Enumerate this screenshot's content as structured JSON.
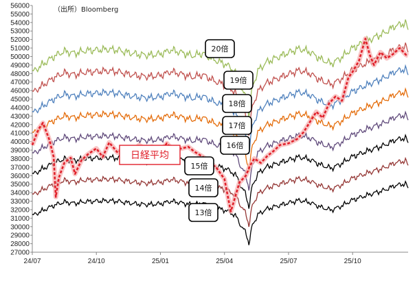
{
  "source_label": "（出所）Bloomberg",
  "chart_data": {
    "type": "line",
    "ylim": [
      27000,
      56000
    ],
    "y_ticks": [
      27000,
      28000,
      29000,
      30000,
      31000,
      32000,
      33000,
      34000,
      35000,
      36000,
      37000,
      38000,
      39000,
      40000,
      41000,
      42000,
      43000,
      44000,
      45000,
      46000,
      47000,
      48000,
      49000,
      50000,
      51000,
      52000,
      53000,
      54000,
      55000,
      56000
    ],
    "x_ticks": [
      {
        "label": "24/07",
        "t": 0
      },
      {
        "label": "24/10",
        "t": 3
      },
      {
        "label": "25/01",
        "t": 6
      },
      {
        "label": "25/04",
        "t": 9
      },
      {
        "label": "25/07",
        "t": 12
      },
      {
        "label": "25/10",
        "t": 15
      }
    ],
    "x_range": [
      0,
      17.6
    ],
    "colors": {
      "20": "#9bbb59",
      "19": "#c0504d",
      "18": "#4f81bd",
      "17": "#e46c0a",
      "16": "#604a7b",
      "15": "#000000",
      "14": "#943634",
      "13": "#000000",
      "nikkei": "#e0202a"
    },
    "band_anchors": [
      [
        0.0,
        31300
      ],
      [
        0.5,
        31900
      ],
      [
        1.0,
        32500
      ],
      [
        1.5,
        32900
      ],
      [
        2.0,
        32750
      ],
      [
        2.5,
        32950
      ],
      [
        3.0,
        33000
      ],
      [
        3.5,
        33050
      ],
      [
        4.0,
        33000
      ],
      [
        4.5,
        32800
      ],
      [
        5.0,
        32650
      ],
      [
        5.5,
        32600
      ],
      [
        6.0,
        32700
      ],
      [
        6.5,
        33000
      ],
      [
        7.0,
        32800
      ],
      [
        7.5,
        32550
      ],
      [
        8.0,
        32750
      ],
      [
        8.5,
        32250
      ],
      [
        9.0,
        31950
      ],
      [
        9.3,
        31650
      ],
      [
        9.6,
        31050
      ],
      [
        9.8,
        29900
      ],
      [
        10.0,
        29400
      ],
      [
        10.15,
        27900
      ],
      [
        10.3,
        30200
      ],
      [
        10.6,
        31500
      ],
      [
        11.0,
        32100
      ],
      [
        11.5,
        32450
      ],
      [
        12.0,
        32800
      ],
      [
        12.5,
        33100
      ],
      [
        13.0,
        32850
      ],
      [
        13.5,
        32300
      ],
      [
        14.0,
        31950
      ],
      [
        14.5,
        32450
      ],
      [
        15.0,
        33150
      ],
      [
        15.5,
        33550
      ],
      [
        16.0,
        33950
      ],
      [
        16.5,
        34300
      ],
      [
        17.0,
        34850
      ],
      [
        17.5,
        35050
      ],
      [
        17.6,
        34450
      ]
    ],
    "band_multipliers": {
      "13": 1.0,
      "14": 1.0769,
      "15": 1.1538,
      "16": 1.2308,
      "17": 1.3077,
      "18": 1.3846,
      "19": 1.4615,
      "20": 1.5385
    },
    "band_labels": [
      "20倍",
      "19倍",
      "18倍",
      "17倍",
      "16倍",
      "15倍",
      "14倍",
      "13倍"
    ],
    "nikkei_label": "日経平均",
    "series": [
      {
        "name": "日経平均",
        "values": [
          [
            0.0,
            39600
          ],
          [
            0.3,
            41500
          ],
          [
            0.5,
            42200
          ],
          [
            0.8,
            40200
          ],
          [
            1.0,
            38200
          ],
          [
            1.1,
            33500
          ],
          [
            1.25,
            35800
          ],
          [
            1.5,
            37500
          ],
          [
            1.8,
            38100
          ],
          [
            2.0,
            36200
          ],
          [
            2.3,
            37800
          ],
          [
            2.6,
            38500
          ],
          [
            3.0,
            39200
          ],
          [
            3.3,
            38200
          ],
          [
            3.6,
            39900
          ],
          [
            4.0,
            38700
          ],
          [
            4.3,
            39300
          ],
          [
            4.6,
            38400
          ],
          [
            5.0,
            39600
          ],
          [
            5.3,
            39100
          ],
          [
            5.6,
            39400
          ],
          [
            6.0,
            38800
          ],
          [
            6.3,
            39800
          ],
          [
            6.6,
            39000
          ],
          [
            7.0,
            39200
          ],
          [
            7.3,
            39400
          ],
          [
            7.6,
            38800
          ],
          [
            8.0,
            38200
          ],
          [
            8.3,
            37500
          ],
          [
            8.6,
            37000
          ],
          [
            9.0,
            35600
          ],
          [
            9.2,
            33000
          ],
          [
            9.3,
            31800
          ],
          [
            9.5,
            33500
          ],
          [
            9.7,
            35200
          ],
          [
            10.0,
            36000
          ],
          [
            10.2,
            37200
          ],
          [
            10.4,
            38000
          ],
          [
            10.7,
            37500
          ],
          [
            11.0,
            38300
          ],
          [
            11.3,
            38900
          ],
          [
            11.6,
            39600
          ],
          [
            12.0,
            39800
          ],
          [
            12.4,
            40300
          ],
          [
            12.7,
            41100
          ],
          [
            13.0,
            42300
          ],
          [
            13.3,
            43500
          ],
          [
            13.6,
            42800
          ],
          [
            13.9,
            44500
          ],
          [
            14.2,
            45300
          ],
          [
            14.5,
            44800
          ],
          [
            14.8,
            47500
          ],
          [
            15.0,
            48200
          ],
          [
            15.3,
            49500
          ],
          [
            15.6,
            52100
          ],
          [
            15.8,
            50200
          ],
          [
            16.0,
            49000
          ],
          [
            16.3,
            50500
          ],
          [
            16.6,
            49800
          ],
          [
            16.9,
            50300
          ],
          [
            17.2,
            51000
          ],
          [
            17.5,
            50200
          ],
          [
            17.6,
            50100
          ]
        ]
      }
    ]
  }
}
